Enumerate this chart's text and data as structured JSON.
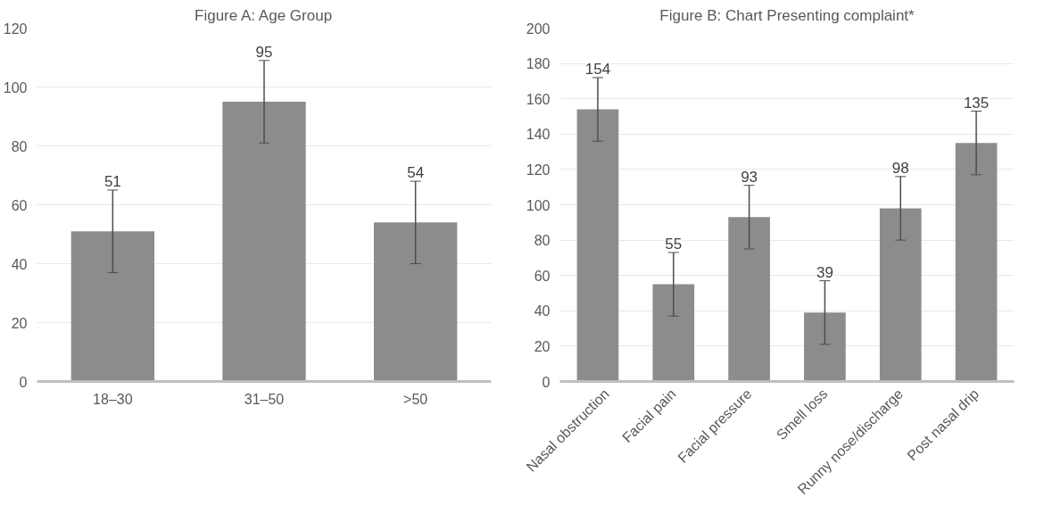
{
  "chart_data": [
    {
      "type": "bar",
      "title": "Figure A: Age Group",
      "categories": [
        "18–30",
        "31–50",
        ">50"
      ],
      "values": [
        51,
        95,
        54
      ],
      "errors": [
        14,
        14,
        14
      ],
      "color": "#8c8c8c",
      "ylim": [
        0,
        120
      ],
      "yticks": [
        0,
        20,
        40,
        60,
        80,
        100,
        120
      ],
      "grid": "y",
      "data_labels": true
    },
    {
      "type": "bar",
      "title": "Figure B: Chart Presenting complaint*",
      "categories": [
        "Nasal obstruction",
        "Facial pain",
        "Facial pressure",
        "Smell loss",
        "Runny nose/discharge",
        "Post nasal drip"
      ],
      "values": [
        154,
        55,
        93,
        39,
        98,
        135
      ],
      "errors": [
        18,
        18,
        18,
        18,
        18,
        18
      ],
      "color": "#8c8c8c",
      "ylim": [
        0,
        200
      ],
      "yticks": [
        0,
        20,
        40,
        60,
        80,
        100,
        120,
        140,
        160,
        180,
        200
      ],
      "grid": "y",
      "data_labels": true
    }
  ]
}
